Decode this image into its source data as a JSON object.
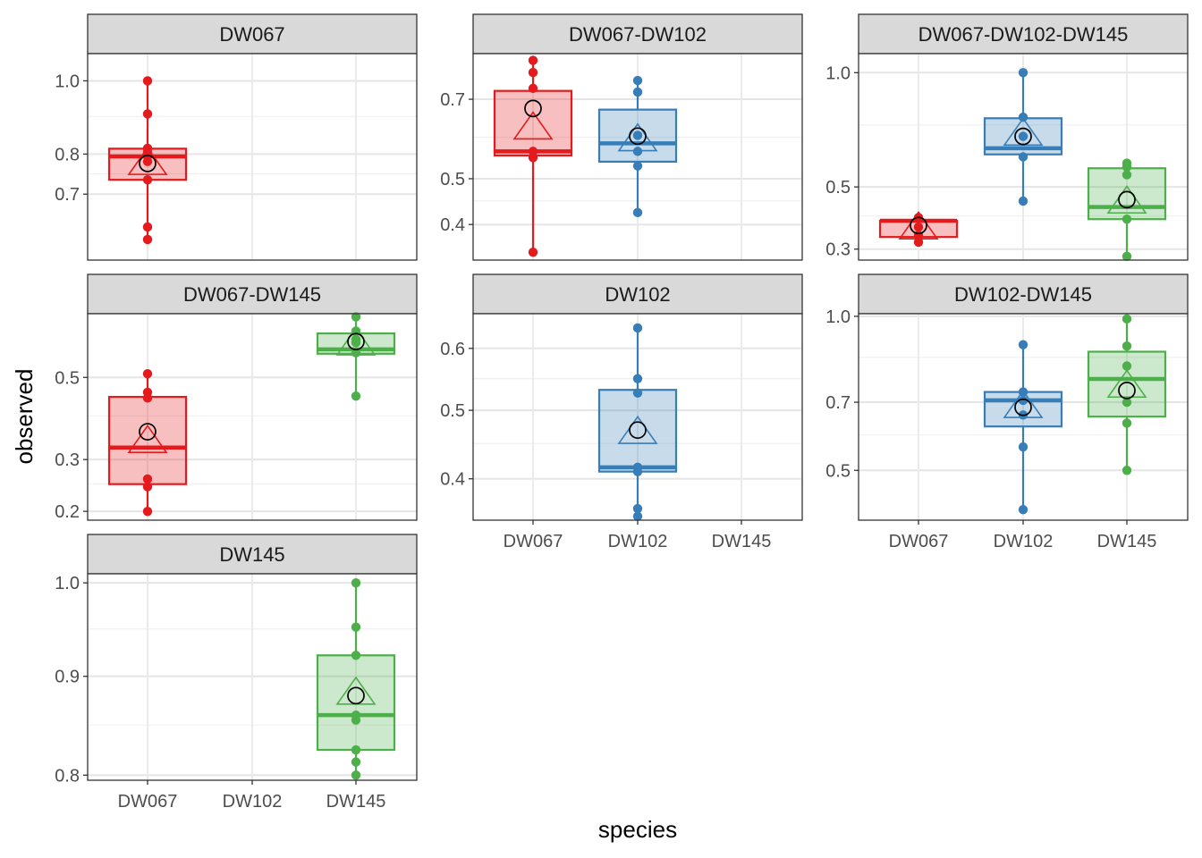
{
  "chart_data": {
    "type": "boxplot",
    "xlabel": "species",
    "ylabel": "observed",
    "categories": [
      "DW067",
      "DW102",
      "DW145"
    ],
    "colors": {
      "DW067": "#e41a1c",
      "DW102": "#377eb8",
      "DW145": "#4daf4a"
    },
    "y_scale": "sqrt",
    "legend": "none",
    "grid": true,
    "mean_marker": "open-circle",
    "facets": [
      {
        "title": "DW067",
        "ylim": [
          0.55,
          1.08
        ],
        "yticks": [
          0.7,
          0.8,
          1.0
        ],
        "groups": [
          {
            "category": "DW067",
            "q1": 0.735,
            "median": 0.794,
            "q3": 0.814,
            "whisker_low": 0.595,
            "whisker_high": 1.0,
            "mean": 0.776,
            "triangle": 0.782,
            "points": [
              1.0,
              0.907,
              0.815,
              0.805,
              0.781,
              0.735,
              0.623,
              0.595
            ]
          }
        ]
      },
      {
        "title": "DW067-DW102",
        "ylim": [
          0.33,
          0.83
        ],
        "yticks": [
          0.4,
          0.5,
          0.7
        ],
        "groups": [
          {
            "category": "DW067",
            "q1": 0.555,
            "median": 0.565,
            "q3": 0.723,
            "whisker_low": 0.345,
            "whisker_high": 0.81,
            "mean": 0.675,
            "triangle": 0.63,
            "points": [
              0.81,
              0.775,
              0.73,
              0.565,
              0.55,
              0.345
            ]
          },
          {
            "category": "DW102",
            "q1": 0.54,
            "median": 0.585,
            "q3": 0.672,
            "whisker_low": 0.425,
            "whisker_high": 0.752,
            "mean": 0.603,
            "triangle": 0.6,
            "points": [
              0.752,
              0.72,
              0.605,
              0.565,
              0.53,
              0.425
            ]
          }
        ]
      },
      {
        "title": "DW067-DW102-DW145",
        "ylim": [
          0.27,
          1.1
        ],
        "yticks": [
          0.3,
          0.5,
          1.0
        ],
        "groups": [
          {
            "category": "DW067",
            "q1": 0.335,
            "median": 0.385,
            "q3": 0.385,
            "whisker_low": 0.32,
            "whisker_high": 0.395,
            "mean": 0.37,
            "triangle": 0.37,
            "points": [
              0.395,
              0.365,
              0.34,
              0.32
            ]
          },
          {
            "category": "DW102",
            "q1": 0.625,
            "median": 0.65,
            "q3": 0.78,
            "whisker_low": 0.45,
            "whisker_high": 1.0,
            "mean": 0.7,
            "triangle": 0.72,
            "points": [
              1.0,
              0.785,
              0.7,
              0.615,
              0.45
            ]
          },
          {
            "category": "DW145",
            "q1": 0.39,
            "median": 0.43,
            "q3": 0.57,
            "whisker_low": 0.28,
            "whisker_high": 0.59,
            "mean": 0.455,
            "triangle": 0.455,
            "points": [
              0.59,
              0.575,
              0.545,
              0.39,
              0.28
            ]
          }
        ]
      },
      {
        "title": "DW067-DW145",
        "ylim": [
          0.185,
          0.69
        ],
        "yticks": [
          0.2,
          0.3,
          0.5
        ],
        "groups": [
          {
            "category": "DW067",
            "q1": 0.25,
            "median": 0.326,
            "q3": 0.448,
            "whisker_low": 0.2,
            "whisker_high": 0.51,
            "mean": 0.362,
            "triangle": 0.345,
            "points": [
              0.51,
              0.46,
              0.445,
              0.26,
              0.245,
              0.2
            ]
          },
          {
            "category": "DW145",
            "q1": 0.567,
            "median": 0.58,
            "q3": 0.628,
            "whisker_low": 0.45,
            "whisker_high": 0.68,
            "mean": 0.603,
            "triangle": 0.603,
            "points": [
              0.68,
              0.635,
              0.61,
              0.6,
              0.57,
              0.45
            ]
          }
        ]
      },
      {
        "title": "DW102",
        "ylim": [
          0.345,
          0.66
        ],
        "yticks": [
          0.4,
          0.5,
          0.6
        ],
        "groups": [
          {
            "category": "DW102",
            "q1": 0.41,
            "median": 0.416,
            "q3": 0.532,
            "whisker_low": 0.35,
            "whisker_high": 0.635,
            "mean": 0.47,
            "triangle": 0.47,
            "points": [
              0.635,
              0.55,
              0.527,
              0.416,
              0.41,
              0.36,
              0.35
            ]
          }
        ]
      },
      {
        "title": "DW102-DW145",
        "ylim": [
          0.375,
          1.01
        ],
        "yticks": [
          0.5,
          0.7,
          1.0
        ],
        "groups": [
          {
            "category": "DW102",
            "q1": 0.625,
            "median": 0.706,
            "q3": 0.733,
            "whisker_low": 0.4,
            "whisker_high": 0.895,
            "mean": 0.684,
            "triangle": 0.694,
            "points": [
              0.895,
              0.733,
              0.706,
              0.66,
              0.565,
              0.4
            ]
          },
          {
            "category": "DW145",
            "q1": 0.655,
            "median": 0.776,
            "q3": 0.87,
            "whisker_low": 0.5,
            "whisker_high": 0.99,
            "mean": 0.738,
            "triangle": 0.76,
            "points": [
              0.99,
              0.89,
              0.82,
              0.7,
              0.635,
              0.5
            ]
          }
        ]
      },
      {
        "title": "DW145",
        "ylim": [
          0.795,
          1.01
        ],
        "yticks": [
          0.8,
          0.9,
          1.0
        ],
        "groups": [
          {
            "category": "DW145",
            "q1": 0.825,
            "median": 0.86,
            "q3": 0.922,
            "whisker_low": 0.8,
            "whisker_high": 1.0,
            "mean": 0.88,
            "triangle": 0.885,
            "points": [
              1.0,
              0.952,
              0.922,
              0.86,
              0.855,
              0.825,
              0.813,
              0.8
            ]
          }
        ]
      }
    ]
  }
}
